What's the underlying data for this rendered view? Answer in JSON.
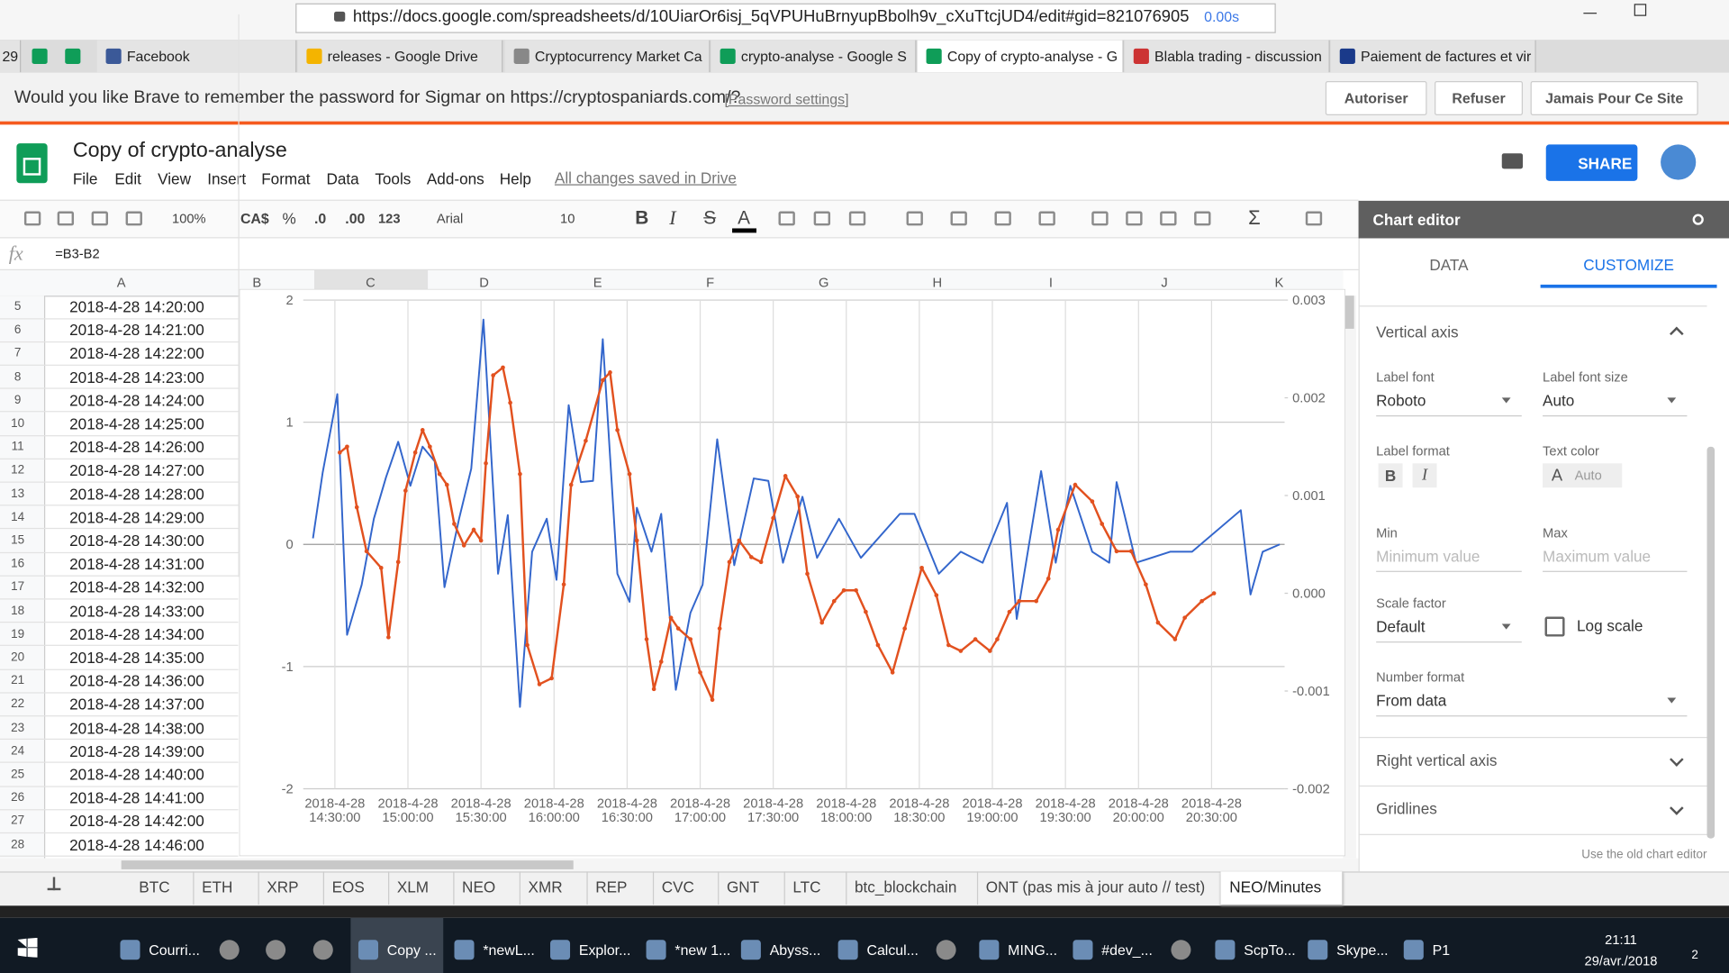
{
  "browser": {
    "url": "https://docs.google.com/spreadsheets/d/10UiarOr6isj_5qVPUHuBrnyupBbolh9v_cXuTtcjUD4/edit#gid=821076905",
    "load_time": "0.00s"
  },
  "browser_tabs": [
    "29",
    "Facebook",
    "releases - Google Drive",
    "Cryptocurrency Market Ca",
    "crypto-analyse - Google S",
    "Copy of crypto-analyse - G",
    "Blabla trading - discussion",
    "Paiement de factures et vir"
  ],
  "password_bar": {
    "message": "Would you like Brave to remember the password for Sigmar on https://cryptospaniards.com/?",
    "settings_link": "[Password settings]",
    "buttons": [
      "Autoriser",
      "Refuser",
      "Jamais Pour Ce Site"
    ]
  },
  "document": {
    "title": "Copy of crypto-analyse",
    "menu": [
      "File",
      "Edit",
      "View",
      "Insert",
      "Format",
      "Data",
      "Tools",
      "Add-ons",
      "Help"
    ],
    "save_status": "All changes saved in Drive",
    "share": "SHARE"
  },
  "toolbar": {
    "zoom": "100%",
    "currency": "CA$",
    "percent": "%",
    "decrease_decimals": ".0",
    "increase_decimals": ".00",
    "more_formats": "123",
    "font": "Arial",
    "font_size": "10",
    "bold": "B",
    "italic": "I",
    "strikethrough": "S",
    "text_color": "A",
    "functions": "Σ"
  },
  "formula_bar": {
    "fx": "fx",
    "formula": "=B3-B2"
  },
  "columns": [
    "A",
    "B",
    "C",
    "D",
    "E",
    "F",
    "G",
    "H",
    "I",
    "J",
    "K"
  ],
  "rows": [
    [
      "5",
      "2018-4-28 14:20:00"
    ],
    [
      "6",
      "2018-4-28 14:21:00"
    ],
    [
      "7",
      "2018-4-28 14:22:00"
    ],
    [
      "8",
      "2018-4-28 14:23:00"
    ],
    [
      "9",
      "2018-4-28 14:24:00"
    ],
    [
      "10",
      "2018-4-28 14:25:00"
    ],
    [
      "11",
      "2018-4-28 14:26:00"
    ],
    [
      "12",
      "2018-4-28 14:27:00"
    ],
    [
      "13",
      "2018-4-28 14:28:00"
    ],
    [
      "14",
      "2018-4-28 14:29:00"
    ],
    [
      "15",
      "2018-4-28 14:30:00"
    ],
    [
      "16",
      "2018-4-28 14:31:00"
    ],
    [
      "17",
      "2018-4-28 14:32:00"
    ],
    [
      "18",
      "2018-4-28 14:33:00"
    ],
    [
      "19",
      "2018-4-28 14:34:00"
    ],
    [
      "20",
      "2018-4-28 14:35:00"
    ],
    [
      "21",
      "2018-4-28 14:36:00"
    ],
    [
      "22",
      "2018-4-28 14:37:00"
    ],
    [
      "23",
      "2018-4-28 14:38:00"
    ],
    [
      "24",
      "2018-4-28 14:39:00"
    ],
    [
      "25",
      "2018-4-28 14:40:00"
    ],
    [
      "26",
      "2018-4-28 14:41:00"
    ],
    [
      "27",
      "2018-4-28 14:42:00"
    ],
    [
      "28",
      "2018-4-28 14:46:00"
    ]
  ],
  "chart_data": {
    "type": "line",
    "grid": true,
    "xlim": [
      "2018-4-28 14:17:00",
      "2018-4-28 21:00:00"
    ],
    "xticks": [
      "2018-4-28 14:30:00",
      "2018-4-28 15:00:00",
      "2018-4-28 15:30:00",
      "2018-4-28 16:00:00",
      "2018-4-28 16:30:00",
      "2018-4-28 17:00:00",
      "2018-4-28 17:30:00",
      "2018-4-28 18:00:00",
      "2018-4-28 18:30:00",
      "2018-4-28 19:00:00",
      "2018-4-28 19:30:00",
      "2018-4-28 20:00:00",
      "2018-4-28 20:30:00"
    ],
    "ylim": [
      -2,
      2
    ],
    "yticks": [
      -2,
      -1,
      0,
      1,
      2
    ],
    "y2lim": [
      -0.002,
      0.003
    ],
    "y2ticks": [
      -0.002,
      -0.001,
      {
        "value": 0,
        "label": "0.000"
      },
      0.001,
      0.002,
      0.003
    ],
    "series": [
      {
        "color": "#3366cc",
        "axis": "y",
        "x": [
          "2018-4-28 14:21:00",
          "2018-4-28 14:25:00",
          "2018-4-28 14:31:00",
          "2018-4-28 14:35:00",
          "2018-4-28 14:41:00",
          "2018-4-28 14:46:00",
          "2018-4-28 14:51:00",
          "2018-4-28 14:56:00",
          "2018-4-28 15:01:00",
          "2018-4-28 15:06:00",
          "2018-4-28 15:11:00",
          "2018-4-28 15:15:00",
          "2018-4-28 15:21:00",
          "2018-4-28 15:26:00",
          "2018-4-28 15:31:00",
          "2018-4-28 15:37:00",
          "2018-4-28 15:41:00",
          "2018-4-28 15:46:00",
          "2018-4-28 15:51:00",
          "2018-4-28 15:57:00",
          "2018-4-28 16:01:00",
          "2018-4-28 16:06:00",
          "2018-4-28 16:11:00",
          "2018-4-28 16:16:00",
          "2018-4-28 16:20:00",
          "2018-4-28 16:26:00",
          "2018-4-28 16:31:00",
          "2018-4-28 16:34:00",
          "2018-4-28 16:40:00",
          "2018-4-28 16:44:00",
          "2018-4-28 16:50:00",
          "2018-4-28 16:56:00",
          "2018-4-28 17:01:00",
          "2018-4-28 17:07:00",
          "2018-4-28 17:14:00",
          "2018-4-28 17:22:00",
          "2018-4-28 17:28:00",
          "2018-4-28 17:34:00",
          "2018-4-28 17:42:00",
          "2018-4-28 17:48:00",
          "2018-4-28 17:57:00",
          "2018-4-28 18:06:00",
          "2018-4-28 18:22:00",
          "2018-4-28 18:28:00",
          "2018-4-28 18:38:00",
          "2018-4-28 18:47:00",
          "2018-4-28 18:56:00",
          "2018-4-28 19:06:00",
          "2018-4-28 19:10:00",
          "2018-4-28 19:20:00",
          "2018-4-28 19:26:00",
          "2018-4-28 19:32:00",
          "2018-4-28 19:41:00",
          "2018-4-28 19:48:00",
          "2018-4-28 19:51:00",
          "2018-4-28 19:59:00",
          "2018-4-28 20:13:00",
          "2018-4-28 20:22:00",
          "2018-4-28 20:42:00",
          "2018-4-28 20:46:00",
          "2018-4-28 20:51:00",
          "2018-4-28 20:58:00"
        ],
        "values": [
          0.05,
          0.59,
          1.23,
          -0.74,
          -0.33,
          0.21,
          0.55,
          0.84,
          0.48,
          0.8,
          0.68,
          -0.35,
          0.21,
          0.62,
          1.84,
          -0.24,
          0.24,
          -1.33,
          -0.06,
          0.21,
          -0.29,
          1.14,
          0.51,
          0.52,
          1.68,
          -0.24,
          -0.47,
          0.3,
          -0.06,
          0.25,
          -1.19,
          -0.56,
          -0.33,
          0.86,
          -0.17,
          0.54,
          0.52,
          -0.15,
          0.39,
          -0.11,
          0.21,
          -0.11,
          0.25,
          0.25,
          -0.24,
          -0.06,
          -0.15,
          0.34,
          -0.61,
          0.6,
          -0.15,
          0.48,
          -0.06,
          -0.15,
          0.51,
          -0.15,
          -0.06,
          -0.06,
          0.28,
          -0.41,
          -0.06,
          0
        ]
      },
      {
        "color": "#e2511f",
        "axis": "y2",
        "markers": true,
        "x": [
          "2018-4-28 14:32:00",
          "2018-4-28 14:35:00",
          "2018-4-28 14:39:00",
          "2018-4-28 14:43:00",
          "2018-4-28 14:49:00",
          "2018-4-28 14:52:00",
          "2018-4-28 14:56:00",
          "2018-4-28 14:59:00",
          "2018-4-28 15:03:00",
          "2018-4-28 15:06:00",
          "2018-4-28 15:09:00",
          "2018-4-28 15:13:00",
          "2018-4-28 15:16:00",
          "2018-4-28 15:19:00",
          "2018-4-28 15:23:00",
          "2018-4-28 15:27:00",
          "2018-4-28 15:30:00",
          "2018-4-28 15:32:00",
          "2018-4-28 15:35:00",
          "2018-4-28 15:39:00",
          "2018-4-28 15:42:00",
          "2018-4-28 15:46:00",
          "2018-4-28 15:49:00",
          "2018-4-28 15:54:00",
          "2018-4-28 15:59:00",
          "2018-4-28 16:04:00",
          "2018-4-28 16:07:00",
          "2018-4-28 16:13:00",
          "2018-4-28 16:20:00",
          "2018-4-28 16:23:00",
          "2018-4-28 16:26:00",
          "2018-4-28 16:31:00",
          "2018-4-28 16:34:00",
          "2018-4-28 16:38:00",
          "2018-4-28 16:41:00",
          "2018-4-28 16:44:00",
          "2018-4-28 16:48:00",
          "2018-4-28 16:51:00",
          "2018-4-28 16:56:00",
          "2018-4-28 17:00:00",
          "2018-4-28 17:05:00",
          "2018-4-28 17:08:00",
          "2018-4-28 17:12:00",
          "2018-4-28 17:16:00",
          "2018-4-28 17:21:00",
          "2018-4-28 17:25:00",
          "2018-4-28 17:30:00",
          "2018-4-28 17:35:00",
          "2018-4-28 17:40:00",
          "2018-4-28 17:44:00",
          "2018-4-28 17:50:00",
          "2018-4-28 17:55:00",
          "2018-4-28 17:59:00",
          "2018-4-28 18:04:00",
          "2018-4-28 18:08:00",
          "2018-4-28 18:13:00",
          "2018-4-28 18:19:00",
          "2018-4-28 18:24:00",
          "2018-4-28 18:31:00",
          "2018-4-28 18:37:00",
          "2018-4-28 18:42:00",
          "2018-4-28 18:47:00",
          "2018-4-28 18:53:00",
          "2018-4-28 18:59:00",
          "2018-4-28 19:02:00",
          "2018-4-28 19:07:00",
          "2018-4-28 19:11:00",
          "2018-4-28 19:18:00",
          "2018-4-28 19:23:00",
          "2018-4-28 19:27:00",
          "2018-4-28 19:34:00",
          "2018-4-28 19:41:00",
          "2018-4-28 19:45:00",
          "2018-4-28 19:51:00",
          "2018-4-28 19:57:00",
          "2018-4-28 20:03:00",
          "2018-4-28 20:08:00",
          "2018-4-28 20:15:00",
          "2018-4-28 20:19:00",
          "2018-4-28 20:26:00",
          "2018-4-28 20:31:00"
        ],
        "values": [
          0.00144,
          0.0015,
          0.00088,
          0.00043,
          0.00026,
          -0.00045,
          0.00032,
          0.00105,
          0.00144,
          0.00167,
          0.0015,
          0.00122,
          0.00111,
          0.00071,
          0.00049,
          0.00065,
          0.00054,
          0.00133,
          0.00223,
          0.00231,
          0.00195,
          0.00122,
          -0.00053,
          -0.00093,
          -0.00087,
          9e-05,
          0.00111,
          0.00156,
          0.00218,
          0.00226,
          0.00167,
          0.00122,
          0.00054,
          -0.00047,
          -0.00098,
          -0.0007,
          -0.00025,
          -0.00036,
          -0.00047,
          -0.00081,
          -0.00109,
          -0.00036,
          0.00032,
          0.00054,
          0.00037,
          0.00032,
          0.00077,
          0.0012,
          0.00099,
          0.0002,
          -0.0003,
          -8e-05,
          3e-05,
          3e-05,
          -0.00019,
          -0.00053,
          -0.00081,
          -0.00036,
          0.00026,
          -2e-05,
          -0.00053,
          -0.00059,
          -0.00047,
          -0.00059,
          -0.00047,
          -0.00019,
          -8e-05,
          -8e-05,
          0.00015,
          0.00065,
          0.00111,
          0.00094,
          0.00071,
          0.00043,
          0.00043,
          9e-05,
          -0.0003,
          -0.00047,
          -0.00025,
          -8e-05,
          0
        ]
      }
    ]
  },
  "chart_editor": {
    "title": "Chart editor",
    "tabs": [
      "DATA",
      "CUSTOMIZE"
    ],
    "section": "Vertical axis",
    "label_font": {
      "label": "Label font",
      "value": "Roboto"
    },
    "label_font_size": {
      "label": "Label font size",
      "value": "Auto"
    },
    "label_format": {
      "label": "Label format",
      "bold": "B",
      "italic": "I"
    },
    "text_color": {
      "label": "Text color",
      "icon": "A",
      "value": "Auto"
    },
    "min": {
      "label": "Min",
      "placeholder": "Minimum value"
    },
    "max": {
      "label": "Max",
      "placeholder": "Maximum value"
    },
    "scale_factor": {
      "label": "Scale factor",
      "value": "Default"
    },
    "log_scale": {
      "label": "Log scale",
      "checked": false
    },
    "number_format": {
      "label": "Number format",
      "value": "From data"
    },
    "collapsed_sections": [
      "Right vertical axis",
      "Gridlines"
    ],
    "old_editor_link": "Use the old chart editor"
  },
  "sheet_tabs": [
    "BTC",
    "ETH",
    "XRP",
    "EOS",
    "XLM",
    "NEO",
    "XMR",
    "REP",
    "CVC",
    "GNT",
    "LTC",
    "btc_blockchain",
    "ONT (pas mis à jour auto // test)",
    "NEO/Minutes"
  ],
  "taskbar": {
    "apps": [
      "Courri...",
      "Copy ...",
      "*newL...",
      "Explor...",
      "*new 1...",
      "Abyss...",
      "Calcul...",
      "MING...",
      "#dev_...",
      "ScpTo...",
      "Skype...",
      "P1"
    ],
    "time": "21:11",
    "date": "29/avr./2018",
    "notification_count": "2"
  }
}
